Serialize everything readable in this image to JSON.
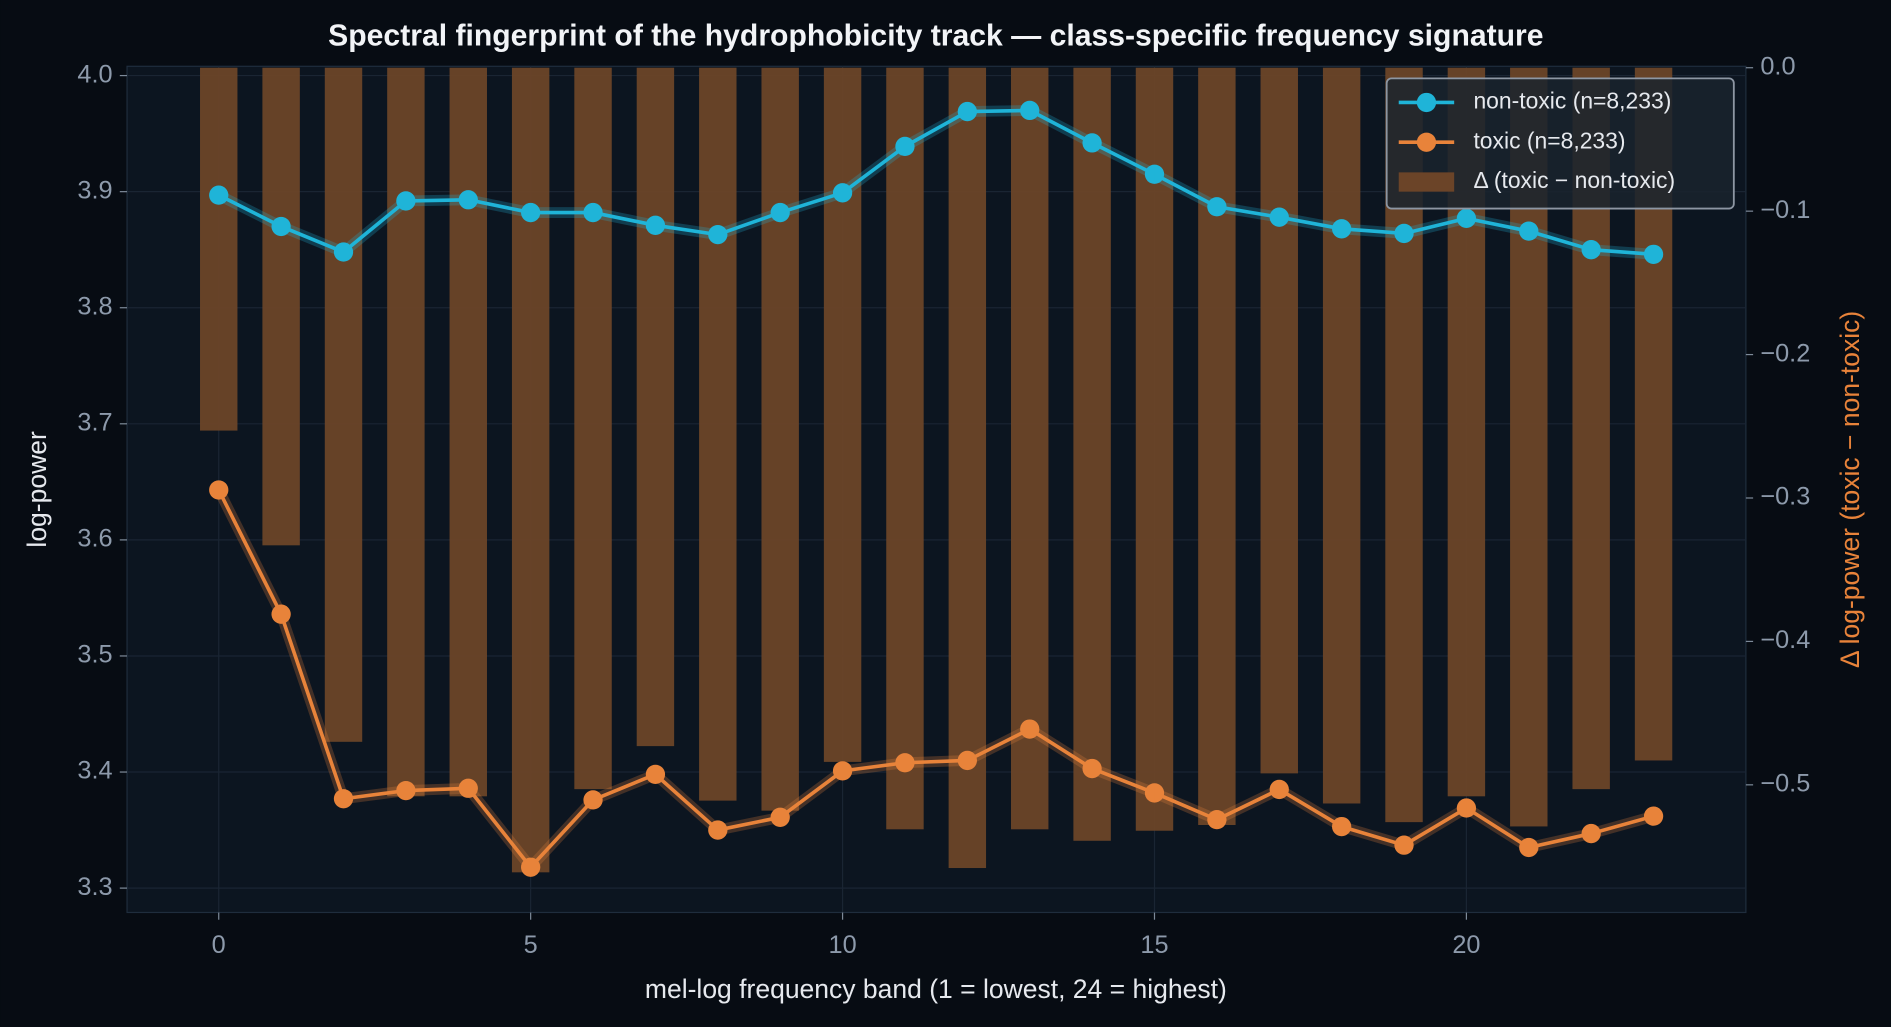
{
  "chart_data": {
    "type": "line",
    "title": "Spectral fingerprint of the hydrophobicity track — class-specific frequency signature",
    "xlabel": "mel-log frequency band (1 = lowest, 24 = highest)",
    "ylabel": "log-power",
    "y2label": "Δ log-power  (toxic − non-toxic)",
    "x": [
      0,
      1,
      2,
      3,
      4,
      5,
      6,
      7,
      8,
      9,
      10,
      11,
      12,
      13,
      14,
      15,
      16,
      17,
      18,
      19,
      20,
      21,
      22,
      23
    ],
    "series": [
      {
        "name": "Δ (toxic − non-toxic)",
        "type": "bar",
        "axis": "y2",
        "color": "#6b4428",
        "values": [
          -0.253,
          -0.333,
          -0.47,
          -0.508,
          -0.508,
          -0.561,
          -0.503,
          -0.473,
          -0.511,
          -0.518,
          -0.484,
          -0.531,
          -0.558,
          -0.531,
          -0.539,
          -0.532,
          -0.528,
          -0.492,
          -0.513,
          -0.526,
          -0.508,
          -0.529,
          -0.503,
          -0.483
        ]
      },
      {
        "name": "non-toxic  (n=8,233)",
        "type": "line",
        "color": "#1fb4d8",
        "values": [
          3.897,
          3.87,
          3.848,
          3.892,
          3.893,
          3.882,
          3.882,
          3.871,
          3.863,
          3.882,
          3.899,
          3.939,
          3.969,
          3.97,
          3.942,
          3.915,
          3.887,
          3.878,
          3.868,
          3.864,
          3.877,
          3.866,
          3.85,
          3.846
        ]
      },
      {
        "name": "toxic  (n=8,233)",
        "type": "line",
        "color": "#e8833a",
        "values": [
          3.643,
          3.536,
          3.377,
          3.384,
          3.386,
          3.318,
          3.376,
          3.398,
          3.35,
          3.361,
          3.401,
          3.408,
          3.41,
          3.437,
          3.403,
          3.382,
          3.359,
          3.385,
          3.353,
          3.337,
          3.369,
          3.335,
          3.347,
          3.362
        ]
      }
    ],
    "xlim": [
      -1.47,
      24.48
    ],
    "xticks": [
      0,
      5,
      10,
      15,
      20
    ],
    "ylim": [
      3.279,
      4.008
    ],
    "yticks": [
      3.3,
      3.4,
      3.5,
      3.6,
      3.7,
      3.8,
      3.9,
      {
        "value": 4,
        "label": "4.0"
      }
    ],
    "y2lim": [
      -0.589,
      0.001
    ],
    "y2ticks": [
      {
        "value": 0,
        "label": "0.0"
      },
      {
        "value": -0.1,
        "label": "−0.1"
      },
      {
        "value": -0.2,
        "label": "−0.2"
      },
      {
        "value": -0.3,
        "label": "−0.3"
      },
      {
        "value": -0.4,
        "label": "−0.4"
      },
      {
        "value": -0.5,
        "label": "−0.5"
      }
    ],
    "grid": true,
    "legend": "upper right"
  }
}
